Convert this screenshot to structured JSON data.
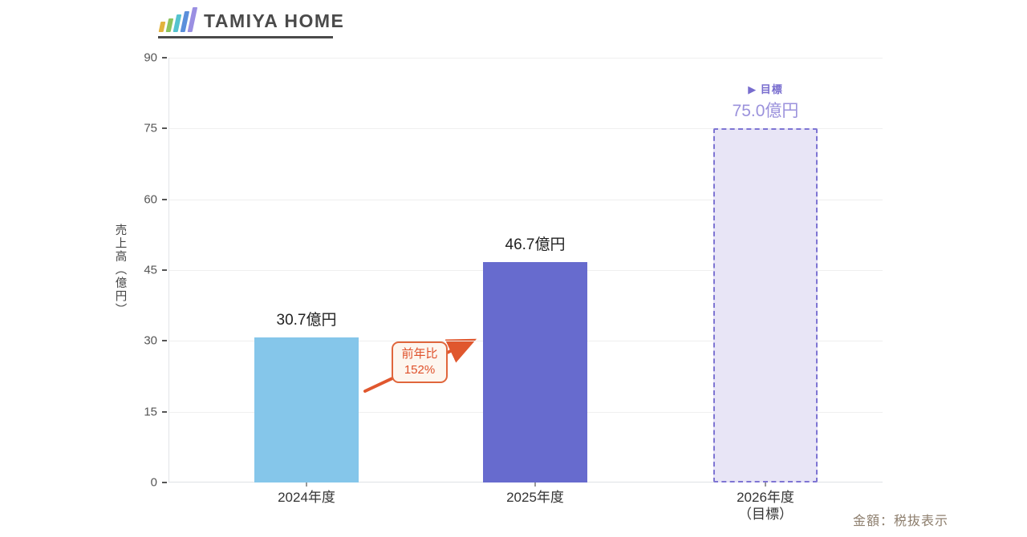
{
  "brand": {
    "name": "TAMIYA HOME",
    "logo_bar_colors": [
      "#e3b33c",
      "#8cc45e",
      "#55c3cf",
      "#5a8fdb",
      "#9a8fe2"
    ]
  },
  "chart_data": {
    "type": "bar",
    "title": "",
    "ylabel": "売上高（億円）",
    "xlabel": "",
    "ylim": [
      0,
      90
    ],
    "yticks": [
      0,
      15,
      30,
      45,
      60,
      75,
      90
    ],
    "grid": "horizontal",
    "categories": [
      "2024年度",
      "2025年度",
      "2026年度（目標）"
    ],
    "values": [
      30.7,
      46.7,
      75.0
    ],
    "bars": [
      {
        "category_line1": "2024年度",
        "category_line2": "",
        "value": 30.7,
        "label": "30.7億円",
        "fill": "#85c6ea",
        "style": "solid"
      },
      {
        "category_line1": "2025年度",
        "category_line2": "",
        "value": 46.7,
        "label": "46.7億円",
        "fill": "#676bce",
        "style": "solid"
      },
      {
        "category_line1": "2026年度",
        "category_line2": "（目標）",
        "value": 75.0,
        "label": "75.0億円",
        "fill": "#e8e5f6",
        "border": "#7e75d3",
        "style": "dashed",
        "target_tag": "▶ 目標"
      }
    ],
    "annotation": {
      "line1": "前年比",
      "line2": "152%",
      "color": "#e0572e"
    },
    "footnote": "金額：税抜表示"
  }
}
